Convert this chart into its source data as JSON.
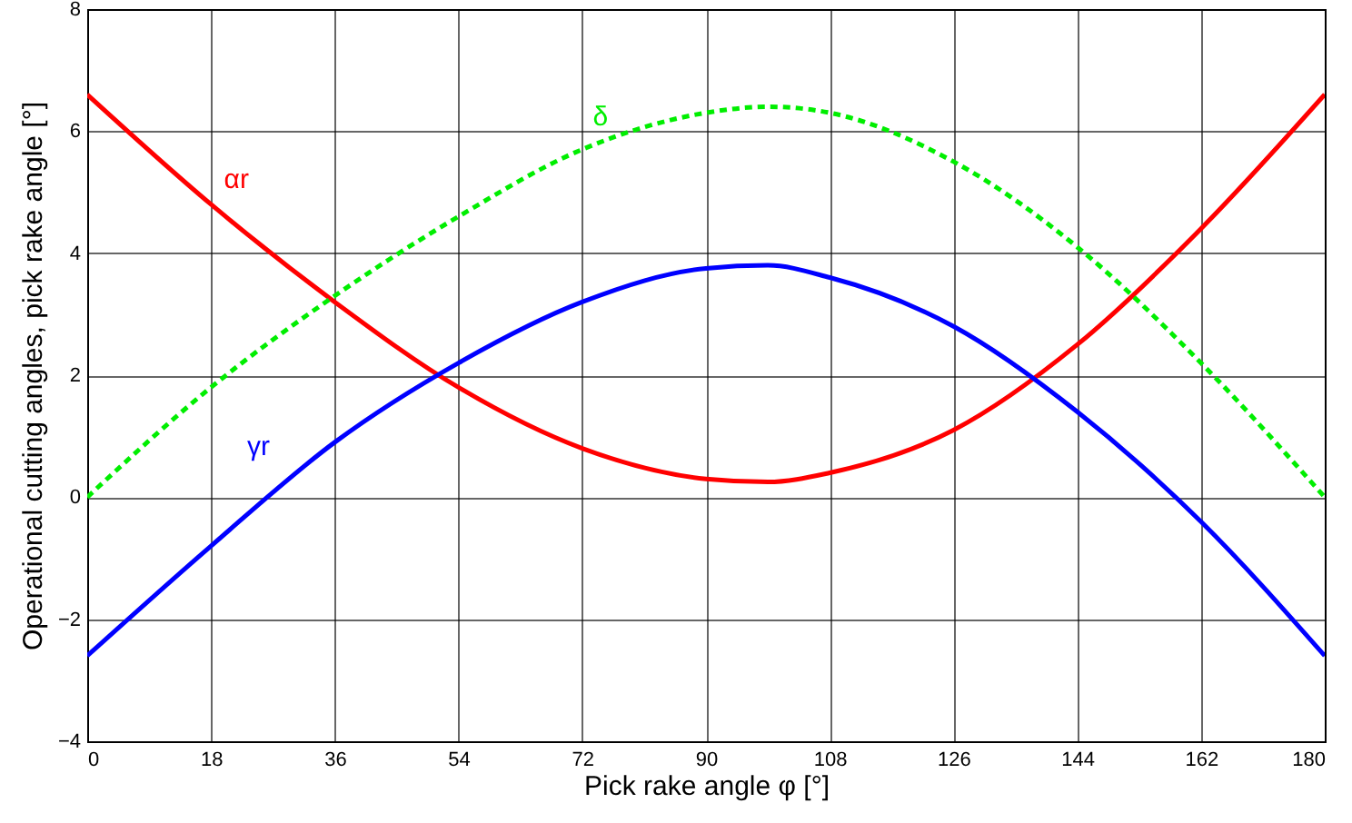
{
  "chart_data": {
    "type": "line",
    "xlabel": "Pick rake angle φ [°]",
    "ylabel": "Operational cutting angles, pick rake angle [°]",
    "x": [
      0,
      18,
      36,
      54,
      72,
      90,
      99,
      108,
      126,
      144,
      162,
      180
    ],
    "series": [
      {
        "name": "αr",
        "color": "#ff0000",
        "line_style": "solid",
        "values": [
          6.6,
          4.8,
          3.2,
          1.8,
          0.8,
          0.3,
          0.25,
          0.4,
          1.1,
          2.5,
          4.4,
          6.6
        ]
      },
      {
        "name": "γr",
        "color": "#0000ff",
        "line_style": "solid",
        "values": [
          -2.6,
          -0.8,
          0.9,
          2.2,
          3.2,
          3.75,
          3.8,
          3.6,
          2.8,
          1.4,
          -0.4,
          -2.6
        ]
      },
      {
        "name": "δ",
        "color": "#00ee00",
        "line_style": "dashed",
        "values": [
          0,
          1.8,
          3.3,
          4.6,
          5.7,
          6.3,
          6.4,
          6.3,
          5.5,
          4.1,
          2.2,
          0
        ]
      }
    ],
    "xlim": [
      0,
      180
    ],
    "xticks": [
      0,
      18,
      36,
      54,
      72,
      90,
      108,
      126,
      144,
      162,
      180
    ],
    "ylim": [
      -4,
      8
    ],
    "yticks": [
      {
        "value": -4,
        "label": "−4"
      },
      {
        "value": -2,
        "label": "−2"
      },
      0,
      2,
      4,
      6,
      8
    ],
    "grid": true,
    "marker": "none"
  }
}
